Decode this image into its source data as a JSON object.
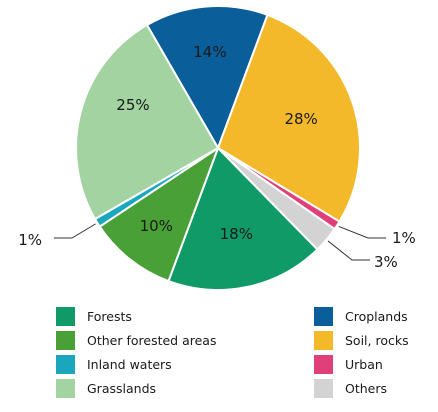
{
  "chart_data": {
    "type": "pie",
    "slices": [
      {
        "label": "Croplands",
        "value": 14,
        "display": "14%",
        "color": "#0a5e99"
      },
      {
        "label": "Soil, rocks",
        "value": 28,
        "display": "28%",
        "color": "#f4b92b"
      },
      {
        "label": "Urban",
        "value": 1,
        "display": "1%",
        "color": "#e0407a"
      },
      {
        "label": "Others",
        "value": 3,
        "display": "3%",
        "color": "#d3d3d3"
      },
      {
        "label": "Forests",
        "value": 18,
        "display": "18%",
        "color": "#0f9a68"
      },
      {
        "label": "Other forested areas",
        "value": 10,
        "display": "10%",
        "color": "#48a037"
      },
      {
        "label": "Inland waters",
        "value": 1,
        "display": "1%",
        "color": "#1aa7bd"
      },
      {
        "label": "Grasslands",
        "value": 25,
        "display": "25%",
        "color": "#a2d3a0"
      }
    ],
    "legend": {
      "placement": "bottom",
      "left": [
        "Forests",
        "Other forested areas",
        "Inland waters",
        "Grasslands"
      ],
      "right": [
        "Croplands",
        "Soil, rocks",
        "Urban",
        "Others"
      ]
    }
  }
}
